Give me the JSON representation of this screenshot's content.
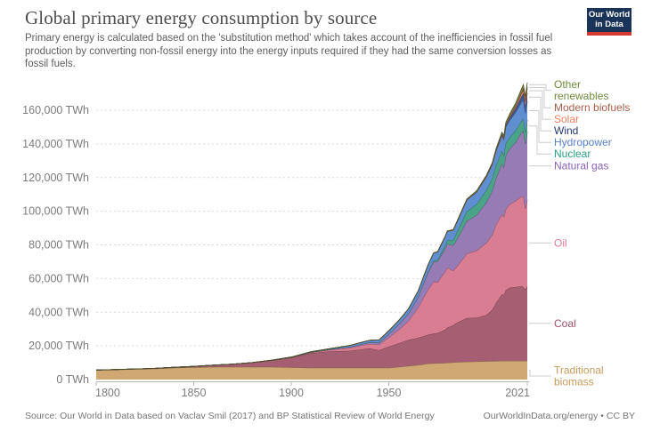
{
  "header": {
    "title": "Global primary energy consumption by source",
    "subtitle": "Primary energy is calculated based on the 'substitution method' which takes account of the inefficiencies in fossil fuel production by converting non-fossil energy into the energy inputs required if they had the same conversion losses as fossil fuels.",
    "logo": {
      "line1": "Our World",
      "line2": "in Data"
    }
  },
  "footer": {
    "source": "Source: Our World in Data based on Vaclav Smil (2017) and BP Statistical Review of World Energy",
    "license": "OurWorldInData.org/energy • CC BY"
  },
  "chart_data": {
    "type": "area",
    "stacked": true,
    "title": "Global primary energy consumption by source",
    "unit": "TWh",
    "legend_position": "right",
    "grid": "dashed-horizontal",
    "xlim": [
      1800,
      2021
    ],
    "ylim": [
      0,
      160000
    ],
    "x_ticks": [
      {
        "value": 1800,
        "label": "1800"
      },
      {
        "value": 1850,
        "label": "1850"
      },
      {
        "value": 1900,
        "label": "1900"
      },
      {
        "value": 1950,
        "label": "1950"
      },
      {
        "value": 2021,
        "label": "2021"
      }
    ],
    "y_ticks": [
      {
        "value": 0,
        "label": "0 TWh"
      },
      {
        "value": 20000,
        "label": "20,000 TWh"
      },
      {
        "value": 40000,
        "label": "40,000 TWh"
      },
      {
        "value": 60000,
        "label": "60,000 TWh"
      },
      {
        "value": 80000,
        "label": "80,000 TWh"
      },
      {
        "value": 100000,
        "label": "100,000 TWh"
      },
      {
        "value": 120000,
        "label": "120,000 TWh"
      },
      {
        "value": 140000,
        "label": "140,000 TWh"
      },
      {
        "value": 160000,
        "label": "160,000 TWh"
      }
    ],
    "x": [
      1800,
      1810,
      1820,
      1830,
      1840,
      1850,
      1860,
      1870,
      1880,
      1890,
      1900,
      1910,
      1920,
      1930,
      1940,
      1945,
      1950,
      1955,
      1960,
      1965,
      1970,
      1973,
      1975,
      1979,
      1980,
      1983,
      1985,
      1990,
      1995,
      2000,
      2003,
      2005,
      2008,
      2009,
      2010,
      2012,
      2015,
      2018,
      2019,
      2020,
      2021
    ],
    "series": [
      {
        "name": "Traditional biomass",
        "label_lines": [
          "Traditional",
          "biomass"
        ],
        "color": "#cfa873",
        "label_color": "#c49b5b",
        "values": [
          5556,
          5833,
          6111,
          6389,
          6944,
          7222,
          7500,
          7500,
          7500,
          7500,
          7222,
          6944,
          6944,
          6944,
          6944,
          6944,
          6944,
          7500,
          8056,
          8611,
          9444,
          9600,
          9700,
          9900,
          10000,
          10200,
          10300,
          10556,
          10700,
          10833,
          10900,
          11000,
          11100,
          11100,
          11111,
          11111,
          11111,
          11111,
          11111,
          11111,
          11111
        ]
      },
      {
        "name": "Coal",
        "label_lines": [
          "Coal"
        ],
        "color": "#a65f72",
        "label_color": "#9e4e62",
        "values": [
          97,
          128,
          153,
          264,
          356,
          569,
          1061,
          1642,
          2542,
          3856,
          5728,
          8656,
          9833,
          10125,
          11586,
          10500,
          12603,
          14000,
          15442,
          16140,
          17065,
          17700,
          17900,
          19800,
          20858,
          22000,
          23500,
          25939,
          26000,
          27427,
          30500,
          34600,
          39500,
          39300,
          41976,
          43500,
          43786,
          44300,
          43849,
          42343,
          44473
        ]
      },
      {
        "name": "Oil",
        "label_lines": [
          "Oil"
        ],
        "color": "#d97d92",
        "label_color": "#dd7a92",
        "values": [
          0,
          0,
          0,
          0,
          0,
          0,
          2,
          11,
          33,
          76,
          181,
          397,
          889,
          1756,
          2654,
          3300,
          5444,
          8000,
          11096,
          17897,
          26659,
          30900,
          30300,
          34500,
          35519,
          32500,
          33500,
          38201,
          39900,
          42881,
          44500,
          46500,
          47500,
          46300,
          48103,
          49500,
          51310,
          53200,
          53620,
          48012,
          51170
        ]
      },
      {
        "name": "Natural gas",
        "label_lines": [
          "Natural gas"
        ],
        "color": "#977bb5",
        "label_color": "#8a62b8",
        "values": [
          0,
          0,
          0,
          0,
          0,
          0,
          0,
          0,
          10,
          34,
          64,
          141,
          233,
          606,
          881,
          1300,
          2092,
          3200,
          4472,
          6304,
          10169,
          11900,
          12100,
          13800,
          14243,
          15000,
          16200,
          19484,
          21000,
          24029,
          26000,
          27700,
          30200,
          29400,
          31883,
          33100,
          34741,
          38000,
          39292,
          38457,
          40375
        ]
      },
      {
        "name": "Nuclear",
        "label_lines": [
          "Nuclear"
        ],
        "color": "#4aa386",
        "label_color": "#27a083",
        "values": [
          0,
          0,
          0,
          0,
          0,
          0,
          0,
          0,
          0,
          0,
          0,
          0,
          0,
          0,
          0,
          0,
          0,
          0,
          9,
          72,
          224,
          560,
          1049,
          1850,
          2020,
          3200,
          4225,
          5676,
          6590,
          7323,
          7500,
          7608,
          7450,
          7250,
          7374,
          6700,
          6971,
          7000,
          7073,
          6789,
          7031
        ]
      },
      {
        "name": "Hydropower",
        "label_lines": [
          "Hydropower"
        ],
        "color": "#5f8fd0",
        "label_color": "#5880cf",
        "values": [
          0,
          0,
          0,
          0,
          0,
          2,
          5,
          10,
          15,
          28,
          170,
          340,
          500,
          830,
          1240,
          1500,
          1853,
          2300,
          2780,
          3450,
          4200,
          4600,
          4800,
          5300,
          5400,
          5800,
          6000,
          6800,
          7200,
          7830,
          8200,
          8420,
          9000,
          9100,
          9518,
          10200,
          10764,
          11100,
          11294,
          11507,
          11183
        ]
      },
      {
        "name": "Wind",
        "label_lines": [
          "Wind"
        ],
        "color": "#41578f",
        "label_color": "#24386b",
        "values": [
          0,
          0,
          0,
          0,
          0,
          0,
          0,
          0,
          0,
          0,
          0,
          0,
          0,
          0,
          0,
          0,
          0,
          0,
          0,
          0,
          0,
          0,
          0,
          0,
          0,
          0,
          0,
          9,
          20,
          83,
          160,
          280,
          590,
          740,
          962,
          1400,
          2335,
          3400,
          3887,
          4342,
          4872
        ]
      },
      {
        "name": "Solar",
        "label_lines": [
          "Solar"
        ],
        "color": "#ef8f7a",
        "label_color": "#f2805e",
        "values": [
          0,
          0,
          0,
          0,
          0,
          0,
          0,
          0,
          0,
          0,
          0,
          0,
          0,
          0,
          0,
          0,
          0,
          0,
          0,
          0,
          0,
          0,
          0,
          0,
          0,
          0,
          0,
          0,
          0,
          3,
          6,
          12,
          40,
          60,
          91,
          250,
          683,
          1430,
          1857,
          2313,
          2702
        ]
      },
      {
        "name": "Modern biofuels",
        "label_lines": [
          "Modern biofuels"
        ],
        "color": "#a55c41",
        "label_color": "#a5604a",
        "values": [
          0,
          0,
          0,
          0,
          0,
          0,
          0,
          0,
          0,
          0,
          0,
          0,
          0,
          0,
          0,
          0,
          0,
          0,
          0,
          0,
          0,
          0,
          50,
          90,
          110,
          140,
          160,
          186,
          230,
          263,
          330,
          400,
          580,
          620,
          686,
          780,
          900,
          1050,
          1100,
          1127,
          1140
        ]
      },
      {
        "name": "Other renewables",
        "label_lines": [
          "Other",
          "renewables"
        ],
        "color": "#7a8b46",
        "label_color": "#728a3f",
        "values": [
          0,
          0,
          0,
          0,
          0,
          0,
          0,
          0,
          0,
          0,
          0,
          0,
          0,
          0,
          0,
          0,
          0,
          0,
          30,
          50,
          80,
          100,
          120,
          170,
          200,
          250,
          300,
          420,
          500,
          600,
          700,
          800,
          1000,
          1050,
          1100,
          1300,
          1600,
          2000,
          2100,
          2200,
          2306
        ]
      }
    ]
  }
}
